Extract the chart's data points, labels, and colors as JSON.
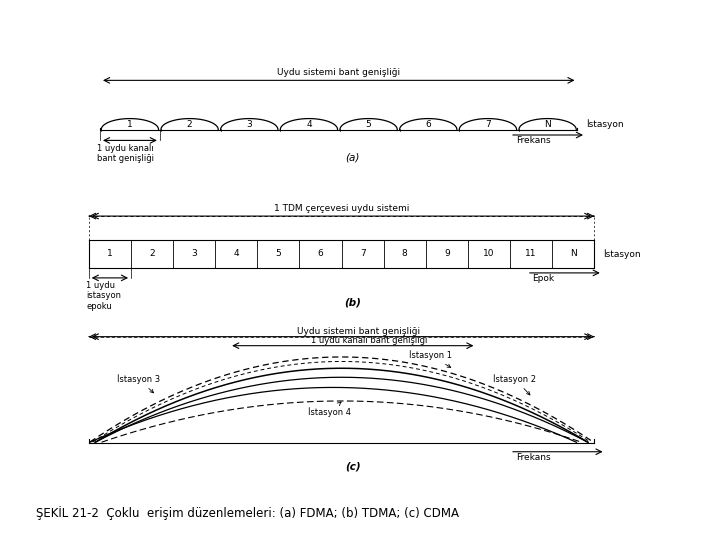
{
  "title": "ŞEKİL 21-2  Çoklu  erişim düzenlemeleri: (a) FDMA; (b) TDMA; (c) CDMA",
  "fdma_channels": [
    "1",
    "2",
    "3",
    "4",
    "5",
    "6",
    "7",
    "N"
  ],
  "fdma_label_top": "Uydu sistemi bant genişliği",
  "fdma_label_bottom_left": "1 uydu kanalı\nbant genişliği",
  "fdma_xlabel": "Frekans",
  "fdma_ylabel": "İstasyon",
  "tdma_slots": [
    "1",
    "2",
    "3",
    "4",
    "5",
    "6",
    "7",
    "8",
    "9",
    "10",
    "11",
    "N"
  ],
  "tdma_label_top": "1 TDM çerçevesi uydu sistemi",
  "tdma_label_bottom_left": "1 uydu\nistasyon\nepoku",
  "tdma_xlabel": "Epok",
  "tdma_ylabel": "İstasyon",
  "cdma_label_top1": "Uydu sistemi bant genişliği",
  "cdma_label_top2": "1 uydu kanalı bant genişliği",
  "cdma_xlabel": "Frekans",
  "label_a": "(a)",
  "label_b": "(b)",
  "label_c": "(c)",
  "bg_color": "#ffffff",
  "line_color": "#000000",
  "caption_fontsize": 8.5,
  "label_fontsize": 7.5,
  "tick_fontsize": 6.5,
  "small_fontsize": 6.0
}
